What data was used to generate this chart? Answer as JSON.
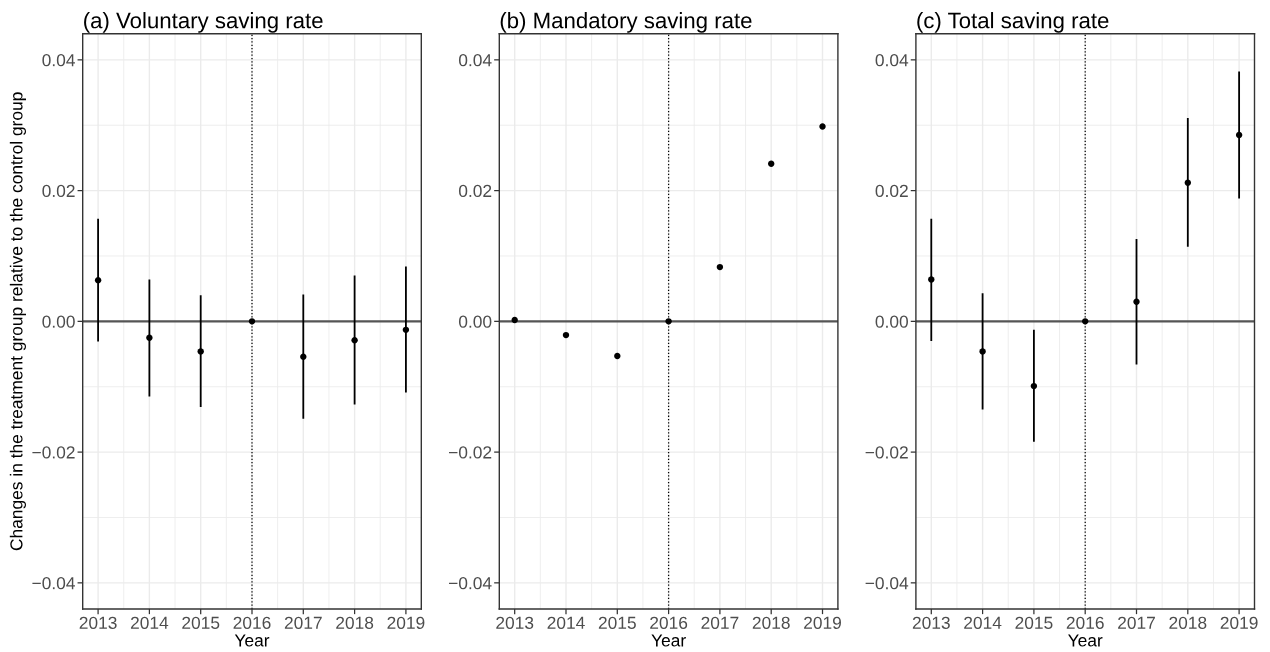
{
  "chart_data": [
    {
      "type": "scatter",
      "title": "(a) Voluntary saving rate",
      "xlabel": "Year",
      "ylabel": "Changes in the treatment group relative to the control group",
      "x": [
        2013,
        2014,
        2015,
        2016,
        2017,
        2018,
        2019
      ],
      "series": [
        {
          "color": "#000000",
          "values": [
            0.0063,
            -0.0025,
            -0.0046,
            0.0,
            -0.0054,
            -0.0029,
            -0.0013
          ],
          "errors": [
            [
              -0.0031,
              0.0157
            ],
            [
              -0.0115,
              0.0064
            ],
            [
              -0.0131,
              0.004
            ],
            null,
            [
              -0.0149,
              0.0041
            ],
            [
              -0.0127,
              0.007
            ],
            [
              -0.0109,
              0.0084
            ]
          ]
        }
      ],
      "xlim": [
        2012.7,
        2019.3
      ],
      "ylim": [
        -0.044,
        0.044
      ],
      "xticks": [
        2013,
        2014,
        2015,
        2016,
        2017,
        2018,
        2019
      ],
      "yticks": [
        {
          "value": -0.04,
          "label": "−0.04"
        },
        {
          "value": -0.02,
          "label": "−0.02"
        },
        {
          "value": 0,
          "label": "0.00"
        },
        {
          "value": 0.02,
          "label": "0.02"
        },
        {
          "value": 0.04,
          "label": "0.04"
        }
      ],
      "ref_lines": [
        {
          "axis": "y",
          "value": 0,
          "color": "#555555",
          "line_style": "solid"
        },
        {
          "axis": "x",
          "value": 2016,
          "color": "#000000",
          "line_style": "dotted"
        }
      ],
      "grid": true,
      "marker": "circle"
    },
    {
      "type": "scatter",
      "title": "(b) Mandatory saving rate",
      "xlabel": "Year",
      "x": [
        2013,
        2014,
        2015,
        2016,
        2017,
        2018,
        2019
      ],
      "series": [
        {
          "color": "#000000",
          "values": [
            0.0002,
            -0.0021,
            -0.0053,
            0.0,
            0.0083,
            0.0241,
            0.0298
          ]
        }
      ],
      "xlim": [
        2012.7,
        2019.3
      ],
      "ylim": [
        -0.044,
        0.044
      ],
      "xticks": [
        2013,
        2014,
        2015,
        2016,
        2017,
        2018,
        2019
      ],
      "yticks": [
        {
          "value": -0.04,
          "label": "−0.04"
        },
        {
          "value": -0.02,
          "label": "−0.02"
        },
        {
          "value": 0,
          "label": "0.00"
        },
        {
          "value": 0.02,
          "label": "0.02"
        },
        {
          "value": 0.04,
          "label": "0.04"
        }
      ],
      "ref_lines": [
        {
          "axis": "y",
          "value": 0,
          "color": "#555555",
          "line_style": "solid"
        },
        {
          "axis": "x",
          "value": 2016,
          "color": "#000000",
          "line_style": "dotted"
        }
      ],
      "grid": true,
      "marker": "circle"
    },
    {
      "type": "scatter",
      "title": "(c) Total saving rate",
      "xlabel": "Year",
      "x": [
        2013,
        2014,
        2015,
        2016,
        2017,
        2018,
        2019
      ],
      "series": [
        {
          "color": "#000000",
          "values": [
            0.0064,
            -0.0046,
            -0.0099,
            0.0,
            0.003,
            0.0212,
            0.0285
          ],
          "errors": [
            [
              -0.003,
              0.0157
            ],
            [
              -0.0135,
              0.0043
            ],
            [
              -0.0184,
              -0.0013
            ],
            null,
            [
              -0.0066,
              0.0126
            ],
            [
              0.0114,
              0.0311
            ],
            [
              0.0188,
              0.0382
            ]
          ]
        }
      ],
      "xlim": [
        2012.7,
        2019.3
      ],
      "ylim": [
        -0.044,
        0.044
      ],
      "xticks": [
        2013,
        2014,
        2015,
        2016,
        2017,
        2018,
        2019
      ],
      "yticks": [
        {
          "value": -0.04,
          "label": "−0.04"
        },
        {
          "value": -0.02,
          "label": "−0.02"
        },
        {
          "value": 0,
          "label": "0.00"
        },
        {
          "value": 0.02,
          "label": "0.02"
        },
        {
          "value": 0.04,
          "label": "0.04"
        }
      ],
      "ref_lines": [
        {
          "axis": "y",
          "value": 0,
          "color": "#555555",
          "line_style": "solid"
        },
        {
          "axis": "x",
          "value": 2016,
          "color": "#000000",
          "line_style": "dotted"
        }
      ],
      "grid": true,
      "marker": "circle"
    }
  ]
}
